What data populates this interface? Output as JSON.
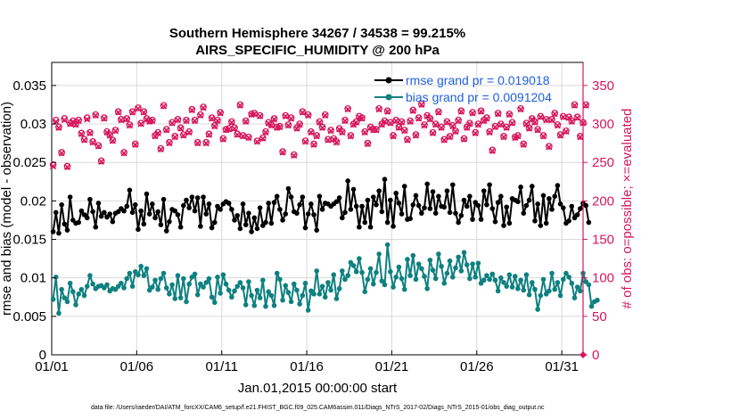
{
  "chart_data": {
    "type": "line",
    "title_line1": "Southern Hemisphere 34267 / 34538 = 99.215%",
    "title_line2": "AIRS_SPECIFIC_HUMIDITY @ 200 hPa",
    "xlabel": "Jan.01,2015 00:00:00 start",
    "ylabel_left": "rmse and bias (model - observation)",
    "ylabel_right": "# of obs: o=possible; ×=evaluated",
    "footnote": "data file: /Users/raeder/DAI/ATM_forcXX/CAM6_setup/f.e21.FHIST_BGC.f09_025.CAM6assim.011/Diags_NTrS_2017-02/Diags_NTrS_2015-01/obs_diag_output.nc",
    "x_range_days": [
      0,
      31.25
    ],
    "ylim_left": [
      0,
      0.038
    ],
    "ylim_right": [
      0,
      380
    ],
    "x_ticks": [
      {
        "day": 0,
        "label": "01/01"
      },
      {
        "day": 5,
        "label": "01/06"
      },
      {
        "day": 10,
        "label": "01/11"
      },
      {
        "day": 15,
        "label": "01/16"
      },
      {
        "day": 20,
        "label": "01/21"
      },
      {
        "day": 25,
        "label": "01/26"
      },
      {
        "day": 30,
        "label": "01/31"
      }
    ],
    "y_ticks_left": [
      {
        "value": 0,
        "label": "0"
      },
      {
        "value": 0.005,
        "label": "0.005"
      },
      {
        "value": 0.01,
        "label": "0.01"
      },
      {
        "value": 0.015,
        "label": "0.015"
      },
      {
        "value": 0.02,
        "label": "0.02"
      },
      {
        "value": 0.025,
        "label": "0.025"
      },
      {
        "value": 0.03,
        "label": "0.03"
      },
      {
        "value": 0.035,
        "label": "0.035"
      }
    ],
    "y_ticks_right": [
      {
        "value": 0,
        "label": "0"
      },
      {
        "value": 50,
        "label": "50"
      },
      {
        "value": 100,
        "label": "100"
      },
      {
        "value": 150,
        "label": "150"
      },
      {
        "value": 200,
        "label": "200"
      },
      {
        "value": 250,
        "label": "250"
      },
      {
        "value": 300,
        "label": "300"
      },
      {
        "value": 350,
        "label": "350"
      }
    ],
    "colors": {
      "rmse": "#000000",
      "bias": "#0f8080",
      "obs": "#d6175c",
      "legend_text": "#1f5fe0",
      "grid": "#d9d9d9"
    },
    "series": [
      {
        "name": "rmse grand pr = 0.019018",
        "axis": "left",
        "values": [
          0.016,
          0.0185,
          0.0158,
          0.0195,
          0.017,
          0.0162,
          0.0205,
          0.0175,
          0.0171,
          0.0172,
          0.0187,
          0.0182,
          0.0178,
          0.0202,
          0.0186,
          0.0166,
          0.0197,
          0.018,
          0.0185,
          0.0179,
          0.0183,
          0.0173,
          0.0184,
          0.0186,
          0.019,
          0.0187,
          0.0193,
          0.0214,
          0.0185,
          0.0195,
          0.0163,
          0.0187,
          0.017,
          0.0209,
          0.0183,
          0.0196,
          0.0178,
          0.0186,
          0.0169,
          0.0202,
          0.0161,
          0.0173,
          0.0189,
          0.0187,
          0.0182,
          0.0166,
          0.0194,
          0.0201,
          0.0191,
          0.0205,
          0.0187,
          0.0204,
          0.0167,
          0.0205,
          0.0183,
          0.0196,
          0.0165,
          0.0172,
          0.0193,
          0.0189,
          0.0196,
          0.0199,
          0.0197,
          0.0189,
          0.0175,
          0.0181,
          0.0164,
          0.0196,
          0.0169,
          0.0184,
          0.016,
          0.0178,
          0.0164,
          0.0191,
          0.0168,
          0.0172,
          0.0197,
          0.0171,
          0.0198,
          0.0206,
          0.0189,
          0.0175,
          0.0183,
          0.0216,
          0.0205,
          0.0186,
          0.0184,
          0.0195,
          0.0205,
          0.0165,
          0.0183,
          0.0196,
          0.0182,
          0.0162,
          0.0206,
          0.0189,
          0.0197,
          0.0196,
          0.0193,
          0.0196,
          0.0199,
          0.0204,
          0.0178,
          0.0185,
          0.0226,
          0.0189,
          0.0215,
          0.0193,
          0.0166,
          0.0193,
          0.0172,
          0.0201,
          0.0166,
          0.0205,
          0.0195,
          0.0213,
          0.0186,
          0.0228,
          0.0172,
          0.0201,
          0.0167,
          0.021,
          0.0197,
          0.0183,
          0.0219,
          0.0176,
          0.0177,
          0.0195,
          0.0207,
          0.0194,
          0.0184,
          0.0191,
          0.0222,
          0.019,
          0.0212,
          0.0184,
          0.0206,
          0.0193,
          0.0192,
          0.0213,
          0.0185,
          0.0221,
          0.0184,
          0.0172,
          0.0181,
          0.0201,
          0.0193,
          0.0206,
          0.0176,
          0.0198,
          0.0194,
          0.0176,
          0.0213,
          0.0195,
          0.0221,
          0.019,
          0.0173,
          0.0198,
          0.0206,
          0.0168,
          0.0192,
          0.0171,
          0.0203,
          0.0201,
          0.0199,
          0.0218,
          0.0184,
          0.0194,
          0.0201,
          0.0219,
          0.0174,
          0.0196,
          0.0168,
          0.0207,
          0.0171,
          0.0203,
          0.0189,
          0.0206,
          0.022,
          0.0196,
          0.0191,
          0.0171,
          0.0174,
          0.0193,
          0.0178,
          0.0182,
          0.019,
          0.0197,
          0.0194,
          0.0172
        ]
      },
      {
        "name": "bias grand pr = 0.0091204",
        "axis": "left",
        "values": [
          0.0072,
          0.0101,
          0.0054,
          0.0085,
          0.0074,
          0.0069,
          0.0093,
          0.0082,
          0.0065,
          0.0079,
          0.0085,
          0.0077,
          0.0089,
          0.0103,
          0.0092,
          0.0086,
          0.0089,
          0.009,
          0.0087,
          0.0091,
          0.0083,
          0.0086,
          0.0085,
          0.0089,
          0.0093,
          0.0087,
          0.0099,
          0.0106,
          0.0089,
          0.0108,
          0.0104,
          0.0115,
          0.0103,
          0.0112,
          0.0084,
          0.0088,
          0.0097,
          0.0085,
          0.0099,
          0.0106,
          0.0087,
          0.0079,
          0.0091,
          0.0073,
          0.0103,
          0.0074,
          0.0099,
          0.0069,
          0.0092,
          0.0101,
          0.0105,
          0.0078,
          0.0092,
          0.0088,
          0.0094,
          0.0099,
          0.0075,
          0.0068,
          0.0101,
          0.008,
          0.0104,
          0.0092,
          0.0084,
          0.0075,
          0.0083,
          0.0089,
          0.0094,
          0.0087,
          0.0065,
          0.0095,
          0.0077,
          0.0064,
          0.0084,
          0.0074,
          0.0097,
          0.0063,
          0.0082,
          0.0077,
          0.0064,
          0.0106,
          0.0098,
          0.0071,
          0.009,
          0.0081,
          0.0069,
          0.0092,
          0.0084,
          0.0066,
          0.0077,
          0.0093,
          0.0058,
          0.0083,
          0.0079,
          0.0109,
          0.0079,
          0.0089,
          0.0075,
          0.0094,
          0.0084,
          0.0104,
          0.0073,
          0.0086,
          0.0109,
          0.0098,
          0.0103,
          0.012,
          0.0116,
          0.0108,
          0.0125,
          0.0107,
          0.0082,
          0.0098,
          0.0112,
          0.0092,
          0.0107,
          0.0131,
          0.0096,
          0.0091,
          0.0143,
          0.0108,
          0.0088,
          0.0101,
          0.0114,
          0.0099,
          0.0085,
          0.0124,
          0.0103,
          0.0129,
          0.0098,
          0.0118,
          0.0112,
          0.0102,
          0.0086,
          0.0123,
          0.011,
          0.0099,
          0.0131,
          0.0115,
          0.0093,
          0.0106,
          0.0122,
          0.0101,
          0.0113,
          0.0127,
          0.0109,
          0.0133,
          0.0117,
          0.0099,
          0.0118,
          0.0101,
          0.0119,
          0.0093,
          0.0097,
          0.0103,
          0.0098,
          0.0105,
          0.0097,
          0.0083,
          0.01,
          0.0094,
          0.0089,
          0.0104,
          0.0088,
          0.0102,
          0.0086,
          0.0097,
          0.0084,
          0.0104,
          0.0078,
          0.0094,
          0.0085,
          0.0059,
          0.0077,
          0.0098,
          0.0079,
          0.0083,
          0.0106,
          0.0085,
          0.0094,
          0.0077,
          0.0098,
          0.0106,
          0.0101,
          0.0093,
          0.0074,
          0.0088,
          0.0083,
          0.0106,
          0.0095,
          0.0091,
          0.0063,
          0.0069,
          0.0071
        ]
      },
      {
        "name": "obs possible",
        "axis": "right",
        "values": [
          247,
          305,
          296,
          263,
          307,
          245,
          301,
          304,
          300,
          305,
          288,
          280,
          308,
          289,
          277,
          312,
          272,
          252,
          308,
          290,
          286,
          279,
          292,
          316,
          306,
          263,
          307,
          299,
          316,
          274,
          321,
          301,
          316,
          307,
          304,
          305,
          285,
          289,
          268,
          324,
          293,
          276,
          302,
          284,
          306,
          295,
          286,
          305,
          290,
          319,
          305,
          276,
          312,
          322,
          276,
          287,
          308,
          298,
          305,
          315,
          281,
          293,
          294,
          303,
          295,
          287,
          325,
          285,
          304,
          283,
          313,
          314,
          278,
          311,
          282,
          290,
          302,
          299,
          307,
          296,
          297,
          264,
          311,
          299,
          308,
          260,
          295,
          300,
          316,
          278,
          312,
          290,
          274,
          285,
          303,
          296,
          312,
          280,
          292,
          281,
          277,
          294,
          290,
          305,
          320,
          285,
          300,
          303,
          310,
          308,
          290,
          275,
          296,
          293,
          293,
          320,
          300,
          304,
          317,
          302,
          285,
          305,
          296,
          303,
          292,
          280,
          304,
          318,
          286,
          308,
          326,
          299,
          311,
          307,
          289,
          300,
          316,
          296,
          280,
          303,
          284,
          298,
          291,
          305,
          317,
          281,
          296,
          301,
          315,
          289,
          300,
          317,
          305,
          308,
          290,
          266,
          297,
          314,
          300,
          284,
          296,
          313,
          302,
          283,
          285,
          320,
          274,
          301,
          295,
          307,
          303,
          293,
          310,
          285,
          306,
          271,
          306,
          314,
          299,
          286,
          310,
          291,
          309,
          304,
          325,
          309,
          284,
          302,
          325
        ]
      },
      {
        "name": "obs evaluated",
        "axis": "right",
        "values": [
          245,
          303,
          295,
          262,
          305,
          244,
          300,
          303,
          299,
          304,
          287,
          279,
          306,
          288,
          276,
          311,
          271,
          251,
          307,
          289,
          285,
          278,
          291,
          315,
          305,
          262,
          306,
          298,
          315,
          273,
          320,
          300,
          315,
          306,
          303,
          304,
          284,
          288,
          267,
          323,
          292,
          275,
          301,
          283,
          305,
          294,
          285,
          304,
          289,
          318,
          304,
          275,
          311,
          321,
          275,
          286,
          307,
          297,
          304,
          314,
          280,
          292,
          293,
          302,
          294,
          286,
          324,
          284,
          303,
          282,
          312,
          313,
          277,
          310,
          281,
          289,
          301,
          298,
          306,
          295,
          296,
          263,
          310,
          298,
          307,
          259,
          294,
          299,
          315,
          277,
          311,
          289,
          273,
          284,
          302,
          295,
          311,
          279,
          291,
          280,
          276,
          293,
          289,
          304,
          319,
          284,
          299,
          302,
          309,
          307,
          289,
          274,
          295,
          292,
          292,
          319,
          299,
          303,
          316,
          301,
          284,
          304,
          295,
          302,
          291,
          279,
          303,
          317,
          285,
          307,
          325,
          298,
          310,
          306,
          288,
          299,
          315,
          295,
          279,
          302,
          283,
          297,
          290,
          304,
          316,
          280,
          295,
          300,
          314,
          288,
          299,
          316,
          304,
          307,
          289,
          265,
          296,
          313,
          299,
          283,
          295,
          312,
          301,
          282,
          284,
          319,
          273,
          300,
          294,
          306,
          302,
          292,
          309,
          284,
          305,
          270,
          305,
          313,
          298,
          285,
          309,
          290,
          308,
          303,
          324,
          308,
          283,
          301,
          324
        ]
      }
    ]
  }
}
